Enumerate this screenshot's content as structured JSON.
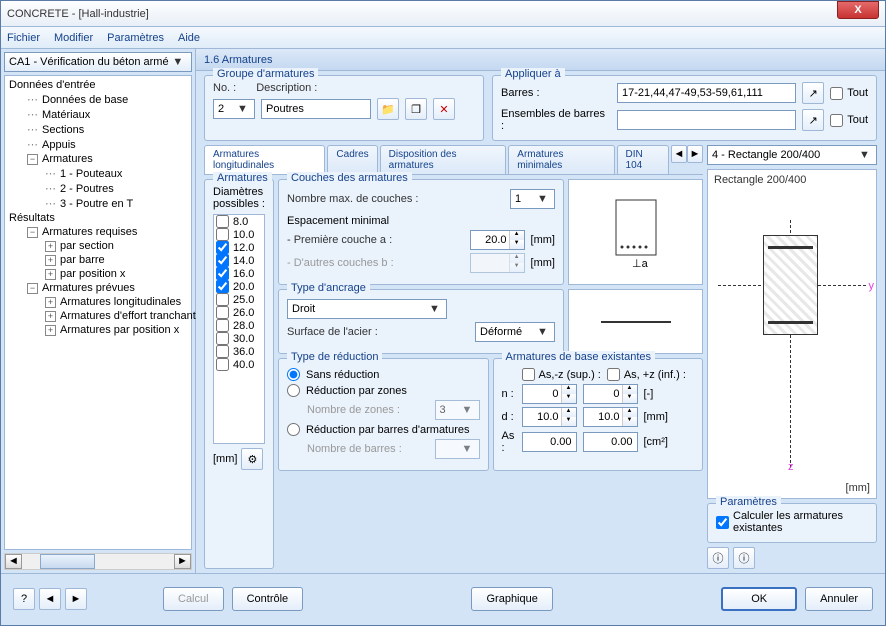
{
  "window": {
    "title": "CONCRETE - [Hall-industrie]"
  },
  "menu": {
    "fichier": "Fichier",
    "modifier": "Modifier",
    "parametres": "Paramètres",
    "aide": "Aide"
  },
  "leftCombo": "CA1 - Vérification du béton armé",
  "tree": {
    "donnees_entree": "Données d'entrée",
    "donnees_base": "Données de base",
    "materiaux": "Matériaux",
    "sections": "Sections",
    "appuis": "Appuis",
    "armatures": "Armatures",
    "pouteaux": "1 - Pouteaux",
    "poutres": "2 - Poutres",
    "poutre_t": "3 - Poutre en T",
    "resultats": "Résultats",
    "arm_requises": "Armatures requises",
    "par_section": "par section",
    "par_barre": "par barre",
    "par_position": "par position x",
    "arm_prevues": "Armatures prévues",
    "arm_long": "Armatures longitudinales",
    "arm_effort": "Armatures d'effort tranchant",
    "arm_pos_x": "Armatures par position x"
  },
  "header": "1.6 Armatures",
  "groupe": {
    "title": "Groupe d'armatures",
    "no_label": "No. :",
    "desc_label": "Description :",
    "no_value": "2",
    "desc_value": "Poutres"
  },
  "appliquer": {
    "title": "Appliquer à",
    "barres_label": "Barres :",
    "barres_value": "17-21,44,47-49,53-59,61,111",
    "ensembles_label": "Ensembles de barres :",
    "tout": "Tout"
  },
  "tabs": {
    "t1": "Armatures longitudinales",
    "t2": "Cadres",
    "t3": "Disposition des armatures",
    "t4": "Armatures minimales",
    "t5": "DIN 104"
  },
  "diametres": {
    "title": "Armatures",
    "label": "Diamètres possibles :",
    "values": [
      "8.0",
      "10.0",
      "12.0",
      "14.0",
      "16.0",
      "20.0",
      "25.0",
      "26.0",
      "28.0",
      "30.0",
      "36.0",
      "40.0"
    ],
    "checked": [
      false,
      false,
      true,
      true,
      true,
      true,
      false,
      false,
      false,
      false,
      false,
      false
    ],
    "unit": "[mm]"
  },
  "couches": {
    "title": "Couches des armatures",
    "nombre_max": "Nombre max. de couches :",
    "nombre_val": "1",
    "espacement": "Espacement minimal",
    "premiere": "- Première couche   a :",
    "premiere_val": "20.0",
    "autres": "- D'autres couches   b :",
    "unit": "[mm]"
  },
  "ancrage": {
    "title": "Type d'ancrage",
    "droit": "Droit",
    "surface_label": "Surface de l'acier :",
    "surface_val": "Déformé"
  },
  "reduction": {
    "title": "Type de réduction",
    "sans": "Sans réduction",
    "zones": "Réduction par zones",
    "nb_zones": "Nombre de zones :",
    "nb_zones_val": "3",
    "barres": "Réduction par barres d'armatures",
    "nb_barres": "Nombre de barres :"
  },
  "existantes": {
    "title": "Armatures de base existantes",
    "as_sup": "As,-z (sup.) :",
    "as_inf": "As, +z (inf.) :",
    "n": "n :",
    "n_val1": "0",
    "n_val2": "0",
    "n_unit": "[-]",
    "d": "d :",
    "d_val1": "10.0",
    "d_val2": "10.0",
    "d_unit": "[mm]",
    "as": "As :",
    "as_val1": "0.00",
    "as_val2": "0.00",
    "as_unit": "[cm²]"
  },
  "section_combo": "4 - Rectangle 200/400",
  "section_label": "Rectangle 200/400",
  "mm": "[mm]",
  "params": {
    "title": "Paramètres",
    "calc": "Calculer les armatures existantes"
  },
  "footer": {
    "calcul": "Calcul",
    "controle": "Contrôle",
    "graphique": "Graphique",
    "ok": "OK",
    "annuler": "Annuler"
  }
}
